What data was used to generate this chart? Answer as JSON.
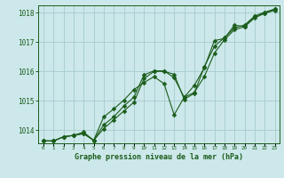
{
  "background_color": "#cce8ea",
  "grid_color": "#aacfd2",
  "line_color": "#1a5c1a",
  "marker_color": "#1a5c1a",
  "title": "Graphe pression niveau de la mer (hPa)",
  "xlim": [
    -0.5,
    23.5
  ],
  "ylim": [
    1013.55,
    1018.25
  ],
  "yticks": [
    1014,
    1015,
    1016,
    1017,
    1018
  ],
  "xticks": [
    0,
    1,
    2,
    3,
    4,
    5,
    6,
    7,
    8,
    9,
    10,
    11,
    12,
    13,
    14,
    15,
    16,
    17,
    18,
    19,
    20,
    21,
    22,
    23
  ],
  "series": [
    [
      1013.63,
      1013.63,
      1013.77,
      1013.82,
      1013.88,
      1013.65,
      1014.05,
      1014.35,
      1014.65,
      1014.95,
      1015.75,
      1016.0,
      1016.0,
      1015.9,
      1015.05,
      1015.25,
      1016.15,
      1016.85,
      1017.15,
      1017.48,
      1017.58,
      1017.88,
      1017.98,
      1018.08
    ],
    [
      1013.63,
      1013.63,
      1013.77,
      1013.82,
      1013.93,
      1013.65,
      1014.18,
      1014.45,
      1014.82,
      1015.12,
      1015.88,
      1016.02,
      1016.02,
      1015.78,
      1015.12,
      1015.52,
      1016.12,
      1017.05,
      1017.12,
      1017.58,
      1017.52,
      1017.88,
      1018.02,
      1018.12
    ],
    [
      1013.63,
      1013.63,
      1013.77,
      1013.82,
      1013.88,
      1013.65,
      1014.45,
      1014.72,
      1015.02,
      1015.38,
      1015.62,
      1015.82,
      1015.58,
      1014.52,
      1015.12,
      1015.28,
      1015.82,
      1016.62,
      1017.08,
      1017.42,
      1017.52,
      1017.82,
      1017.98,
      1018.12
    ]
  ]
}
